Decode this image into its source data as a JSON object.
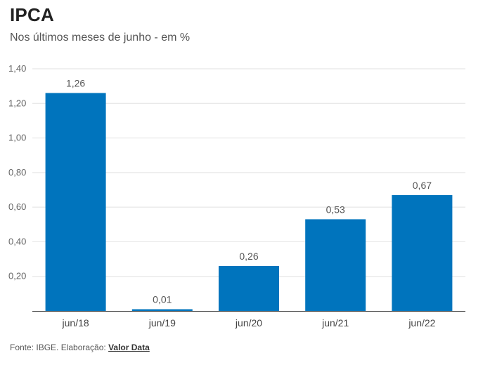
{
  "title": "IPCA",
  "subtitle": "Nos últimos meses de junho - em %",
  "footer": {
    "source": "Fonte: IBGE. Elaboração: ",
    "credit": "Valor Data"
  },
  "colors": {
    "bar": "#0074BD",
    "grid": "#e2e2e2",
    "axis": "#444444"
  },
  "chart_data": {
    "type": "bar",
    "title": "IPCA",
    "subtitle": "Nos últimos meses de junho - em %",
    "categories": [
      "jun/18",
      "jun/19",
      "jun/20",
      "jun/21",
      "jun/22"
    ],
    "values": [
      1.26,
      0.01,
      0.26,
      0.53,
      0.67
    ],
    "value_labels": [
      "1,26",
      "0,01",
      "0,26",
      "0,53",
      "0,67"
    ],
    "yticks": [
      0.2,
      0.4,
      0.6,
      0.8,
      1.0,
      1.2,
      1.4
    ],
    "ytick_labels": [
      "0,20",
      "0,40",
      "0,60",
      "0,80",
      "1,00",
      "1,20",
      "1,40"
    ],
    "ylim": [
      0,
      1.4
    ],
    "xlabel": "",
    "ylabel": "",
    "grid": true,
    "legend": "none"
  }
}
